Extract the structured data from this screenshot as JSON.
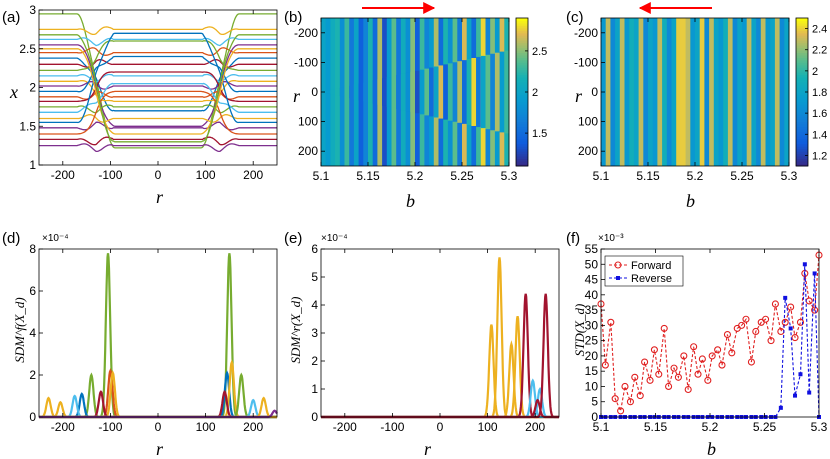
{
  "figure": {
    "panels": [
      {
        "id": "a",
        "tag": "(a)"
      },
      {
        "id": "b",
        "tag": "(b)"
      },
      {
        "id": "c",
        "tag": "(c)"
      },
      {
        "id": "d",
        "tag": "(d)"
      },
      {
        "id": "e",
        "tag": "(e)"
      },
      {
        "id": "f",
        "tag": "(f)"
      }
    ]
  },
  "chart_data": [
    {
      "id": "a",
      "type": "line",
      "xlabel": "r",
      "ylabel": "x",
      "xlim": [
        -250,
        250
      ],
      "ylim": [
        1,
        3
      ],
      "xticks": [
        -200,
        -100,
        0,
        100,
        200
      ],
      "yticks": [
        1,
        1.5,
        2,
        2.5,
        3
      ],
      "description_series": "~36 trajectories; outer region |r|>~170 and inner |r|<~100 take different levels",
      "series": [
        {
          "outer": 2.95,
          "inner": 1.22,
          "color": "#77ac30"
        },
        {
          "outer": 2.75,
          "inner": 2.75,
          "color": "#edb120"
        },
        {
          "outer": 2.62,
          "inner": 2.62,
          "color": "#4dbeee"
        },
        {
          "outer": 2.55,
          "inner": 1.5,
          "color": "#7e2f8e"
        },
        {
          "outer": 2.45,
          "inner": 2.45,
          "color": "#d95319"
        },
        {
          "outer": 2.38,
          "inner": 1.7,
          "color": "#0072bd"
        },
        {
          "outer": 2.3,
          "inner": 2.3,
          "color": "#a2142f"
        },
        {
          "outer": 2.22,
          "inner": 2.6,
          "color": "#77ac30"
        },
        {
          "outer": 2.15,
          "inner": 2.15,
          "color": "#4dbeee"
        },
        {
          "outer": 2.08,
          "inner": 1.82,
          "color": "#edb120"
        },
        {
          "outer": 2.02,
          "inner": 2.02,
          "color": "#7e2f8e"
        },
        {
          "outer": 1.95,
          "inner": 2.4,
          "color": "#0072bd"
        },
        {
          "outer": 1.88,
          "inner": 1.88,
          "color": "#d95319"
        },
        {
          "outer": 1.82,
          "inner": 2.2,
          "color": "#a2142f"
        },
        {
          "outer": 1.75,
          "inner": 1.75,
          "color": "#77ac30"
        },
        {
          "outer": 1.68,
          "inner": 2.05,
          "color": "#4dbeee"
        },
        {
          "outer": 1.6,
          "inner": 1.6,
          "color": "#edb120"
        },
        {
          "outer": 1.55,
          "inner": 2.7,
          "color": "#0072bd"
        },
        {
          "outer": 1.48,
          "inner": 1.48,
          "color": "#7e2f8e"
        },
        {
          "outer": 1.4,
          "inner": 1.95,
          "color": "#d95319"
        },
        {
          "outer": 1.33,
          "inner": 1.33,
          "color": "#a2142f"
        },
        {
          "outer": 1.25,
          "inner": 1.25,
          "color": "#7e2f8e"
        },
        {
          "outer": 2.5,
          "inner": 1.4,
          "color": "#edb120"
        },
        {
          "outer": 2.68,
          "inner": 1.3,
          "color": "#77ac30"
        }
      ]
    },
    {
      "id": "b",
      "type": "heatmap",
      "xlabel": "b",
      "ylabel": "r",
      "xlim": [
        5.1,
        5.3
      ],
      "ylim": [
        -250,
        250
      ],
      "xticks": [
        5.1,
        5.15,
        5.2,
        5.25,
        5.3
      ],
      "xticklabels": [
        "5.1",
        "5.15",
        "5.2",
        "5.25",
        "5.3"
      ],
      "yticks": [
        -200,
        -100,
        0,
        100,
        200
      ],
      "clim": [
        1.1,
        2.9
      ],
      "cticks": [
        1.5,
        2,
        2.5
      ],
      "cticklabels": [
        "1.5",
        "2",
        "2.5"
      ],
      "arrow": "right",
      "columns_outer": [
        2.0,
        1.9,
        2.1,
        2.2,
        1.8,
        2.3,
        1.6,
        2.0,
        1.4,
        1.7,
        2.2,
        1.5,
        2.6,
        1.3,
        1.9,
        2.4,
        1.6,
        2.1,
        1.8,
        2.5,
        1.4,
        2.3,
        1.7,
        1.9,
        2.6,
        1.5,
        2.2,
        1.8,
        2.4,
        1.6,
        2.7,
        2.0,
        1.5,
        2.3,
        2.8,
        1.7,
        2.5,
        1.9,
        2.7,
        2.2
      ],
      "columns_inner": [
        2.0,
        1.9,
        2.1,
        2.2,
        1.8,
        2.3,
        1.6,
        2.0,
        1.4,
        1.7,
        2.2,
        1.5,
        2.6,
        1.3,
        1.9,
        2.4,
        1.6,
        2.1,
        1.8,
        2.5,
        1.3,
        1.9,
        2.4,
        1.5,
        2.0,
        2.7,
        1.4,
        2.3,
        1.7,
        2.6,
        1.5,
        2.2,
        2.8,
        1.6,
        2.0,
        2.4,
        1.7,
        2.6,
        1.9,
        2.3
      ],
      "inner_half_width_start": 0,
      "inner_half_width_end": 140
    },
    {
      "id": "c",
      "type": "heatmap",
      "xlabel": "b",
      "ylabel": "r",
      "xlim": [
        5.1,
        5.3
      ],
      "ylim": [
        -250,
        250
      ],
      "xticks": [
        5.1,
        5.15,
        5.2,
        5.25,
        5.3
      ],
      "xticklabels": [
        "5.1",
        "5.15",
        "5.2",
        "5.25",
        "5.3"
      ],
      "yticks": [
        -200,
        -100,
        0,
        100,
        200
      ],
      "clim": [
        1.1,
        2.5
      ],
      "cticks": [
        1.2,
        1.4,
        1.6,
        1.8,
        2,
        2.2,
        2.4
      ],
      "cticklabels": [
        "1.2",
        "1.4",
        "1.6",
        "1.8",
        "2",
        "2.2",
        "2.4"
      ],
      "arrow": "left",
      "columns": [
        1.7,
        2.3,
        1.6,
        1.8,
        2.3,
        1.7,
        1.9,
        1.8,
        2.3,
        1.6,
        1.8,
        1.7,
        2.3,
        1.9,
        1.6,
        1.8,
        2.4,
        2.4,
        2.3,
        1.7,
        1.8,
        2.4,
        1.6,
        2.3,
        1.8,
        1.7,
        1.9,
        2.3,
        1.6,
        1.8,
        1.7,
        2.3,
        1.8,
        1.6,
        2.3,
        1.7,
        1.8,
        2.3,
        1.6,
        1.8
      ]
    },
    {
      "id": "d",
      "type": "line",
      "ylabel": "SDM^f(X_d)",
      "xlabel": "r",
      "xlim": [
        -250,
        250
      ],
      "ylim": [
        0,
        8
      ],
      "exponent": "×10⁻⁴",
      "xticks": [
        -200,
        -100,
        0,
        100,
        200
      ],
      "yticks": [
        0,
        2,
        4,
        6,
        8
      ],
      "peaks": [
        {
          "center": -105,
          "height": 7.8,
          "color": "#77ac30"
        },
        {
          "center": -100,
          "height": 2.2,
          "color": "#d95319"
        },
        {
          "center": -95,
          "height": 2.1,
          "color": "#edb120"
        },
        {
          "center": -140,
          "height": 2.0,
          "color": "#77ac30"
        },
        {
          "center": -160,
          "height": 1.1,
          "color": "#0072bd"
        },
        {
          "center": -175,
          "height": 1.0,
          "color": "#4dbeee"
        },
        {
          "center": -205,
          "height": 0.7,
          "color": "#edb120"
        },
        {
          "center": -230,
          "height": 0.9,
          "color": "#edb120"
        },
        {
          "center": -120,
          "height": 1.2,
          "color": "#a2142f"
        },
        {
          "center": 150,
          "height": 7.8,
          "color": "#77ac30"
        },
        {
          "center": 145,
          "height": 2.1,
          "color": "#0072bd"
        },
        {
          "center": 155,
          "height": 2.6,
          "color": "#edb120"
        },
        {
          "center": 140,
          "height": 1.2,
          "color": "#a2142f"
        },
        {
          "center": 175,
          "height": 2.0,
          "color": "#77ac30"
        },
        {
          "center": 200,
          "height": 0.8,
          "color": "#4dbeee"
        },
        {
          "center": 222,
          "height": 0.9,
          "color": "#edb120"
        },
        {
          "center": 245,
          "height": 0.3,
          "color": "#7e2f8e"
        }
      ]
    },
    {
      "id": "e",
      "type": "line",
      "ylabel": "SDM^r(X_d)",
      "xlabel": "r",
      "xlim": [
        -250,
        250
      ],
      "ylim": [
        0,
        6
      ],
      "exponent": "×10⁻⁴",
      "xticks": [
        -200,
        -100,
        0,
        100,
        200
      ],
      "yticks": [
        0,
        1,
        2,
        3,
        4,
        5,
        6
      ],
      "peaks": [
        {
          "center": 108,
          "height": 3.3,
          "color": "#edb120"
        },
        {
          "center": 125,
          "height": 5.7,
          "color": "#edb120"
        },
        {
          "center": 150,
          "height": 2.6,
          "color": "#edb120"
        },
        {
          "center": 163,
          "height": 3.6,
          "color": "#edb120"
        },
        {
          "center": 180,
          "height": 4.4,
          "color": "#a2142f"
        },
        {
          "center": 195,
          "height": 1.3,
          "color": "#4dbeee"
        },
        {
          "center": 210,
          "height": 1.0,
          "color": "#4dbeee"
        },
        {
          "center": 222,
          "height": 4.4,
          "color": "#a2142f"
        },
        {
          "center": 205,
          "height": 0.6,
          "color": "#a2142f"
        }
      ]
    },
    {
      "id": "f",
      "type": "line",
      "ylabel": "STD(X_d)",
      "xlabel": "b",
      "xlim": [
        5.1,
        5.3
      ],
      "ylim": [
        0,
        55
      ],
      "exponent": "×10⁻³",
      "xticks": [
        5.1,
        5.15,
        5.2,
        5.25,
        5.3
      ],
      "xticklabels": [
        "5.1",
        "5.15",
        "5.2",
        "5.25",
        "5.3"
      ],
      "yticks": [
        0,
        5,
        10,
        15,
        20,
        25,
        30,
        35,
        40,
        45,
        50,
        55
      ],
      "legend_position": "top-left",
      "series": [
        {
          "name": "Forward",
          "color": "#e02020",
          "marker": "circle",
          "x": [
            5.1,
            5.104,
            5.109,
            5.113,
            5.118,
            5.122,
            5.127,
            5.131,
            5.136,
            5.14,
            5.145,
            5.149,
            5.153,
            5.158,
            5.162,
            5.167,
            5.171,
            5.176,
            5.18,
            5.185,
            5.189,
            5.193,
            5.198,
            5.202,
            5.207,
            5.211,
            5.216,
            5.22,
            5.225,
            5.229,
            5.233,
            5.238,
            5.242,
            5.247,
            5.251,
            5.256,
            5.26,
            5.265,
            5.269,
            5.274,
            5.278,
            5.283,
            5.287,
            5.291,
            5.296,
            5.3
          ],
          "y": [
            37,
            17,
            31,
            6,
            2,
            10,
            5,
            13,
            7,
            18,
            12,
            22,
            14,
            29,
            10,
            16,
            13,
            20,
            9,
            23,
            14,
            19,
            12,
            20,
            22,
            17,
            27,
            21,
            29,
            30,
            32,
            18,
            28,
            31,
            32,
            25,
            37,
            28,
            31,
            36,
            26,
            31,
            47,
            38,
            35,
            53
          ]
        },
        {
          "name": "Reverse",
          "color": "#1010e0",
          "marker": "square",
          "x": [
            5.1,
            5.104,
            5.109,
            5.113,
            5.118,
            5.122,
            5.127,
            5.131,
            5.136,
            5.14,
            5.145,
            5.149,
            5.153,
            5.158,
            5.162,
            5.167,
            5.171,
            5.176,
            5.18,
            5.185,
            5.189,
            5.193,
            5.198,
            5.202,
            5.207,
            5.211,
            5.216,
            5.22,
            5.225,
            5.229,
            5.233,
            5.238,
            5.242,
            5.247,
            5.251,
            5.256,
            5.26,
            5.265,
            5.269,
            5.274,
            5.278,
            5.283,
            5.287,
            5.291,
            5.296,
            5.3
          ],
          "y": [
            0,
            0,
            0,
            0,
            0,
            0,
            0,
            0,
            0,
            0,
            0,
            0,
            0,
            0,
            0,
            0,
            0,
            0,
            0,
            0,
            0,
            0,
            0,
            0,
            0,
            0,
            0,
            0,
            0,
            0,
            0,
            0,
            0,
            0,
            0,
            0,
            0,
            3,
            39,
            29,
            7,
            14,
            50,
            8,
            47,
            0
          ]
        }
      ]
    }
  ]
}
